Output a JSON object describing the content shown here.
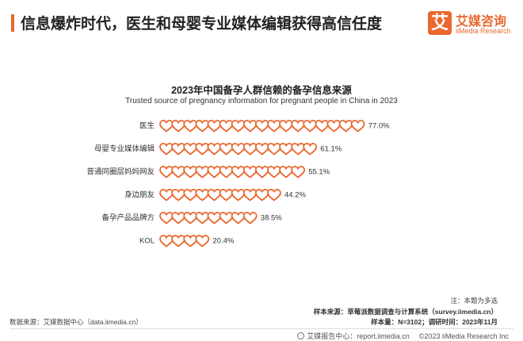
{
  "header": {
    "title": "信息爆炸时代，医生和母婴专业媒体编辑获得高信任度"
  },
  "logo": {
    "mark": "艾",
    "name": "艾媒咨询",
    "name_en": "iiMedia Research"
  },
  "chart_data": {
    "type": "bar",
    "title": "2023年中国备孕人群信赖的备孕信息来源",
    "subtitle": "Trusted source of pregnancy information for pregnant people in China in 2023",
    "categories": [
      "医生",
      "母婴专业媒体编辑",
      "普通同圈层妈妈网友",
      "身边朋友",
      "备孕产品品牌方",
      "KOL"
    ],
    "values": [
      77.0,
      61.1,
      55.1,
      44.2,
      38.5,
      20.4
    ],
    "value_labels": [
      "77.0%",
      "61.1%",
      "55.1%",
      "44.2%",
      "38.5%",
      "20.4%"
    ],
    "unit": "%",
    "mark": "heart",
    "xlim": [
      0,
      100
    ],
    "xlabel": "",
    "ylabel": "",
    "grid": false,
    "legend": false
  },
  "notes": {
    "note": "注：本题为多选",
    "source_sample": "样本来源：草莓派数据调查与计算系统（survey.iimedia.cn）",
    "source_data": "数据来源：艾媒数据中心（data.iimedia.cn）",
    "sample_size": "样本量：N=3102；调研时间：2023年11月"
  },
  "footer": {
    "report": "艾媒报告中心：report.iimedia.cn",
    "copyright": "©2023  iiMedia Research  Inc"
  },
  "colors": {
    "accent": "#e8692f",
    "heart_stroke": "#e8692f",
    "text": "#333333"
  }
}
